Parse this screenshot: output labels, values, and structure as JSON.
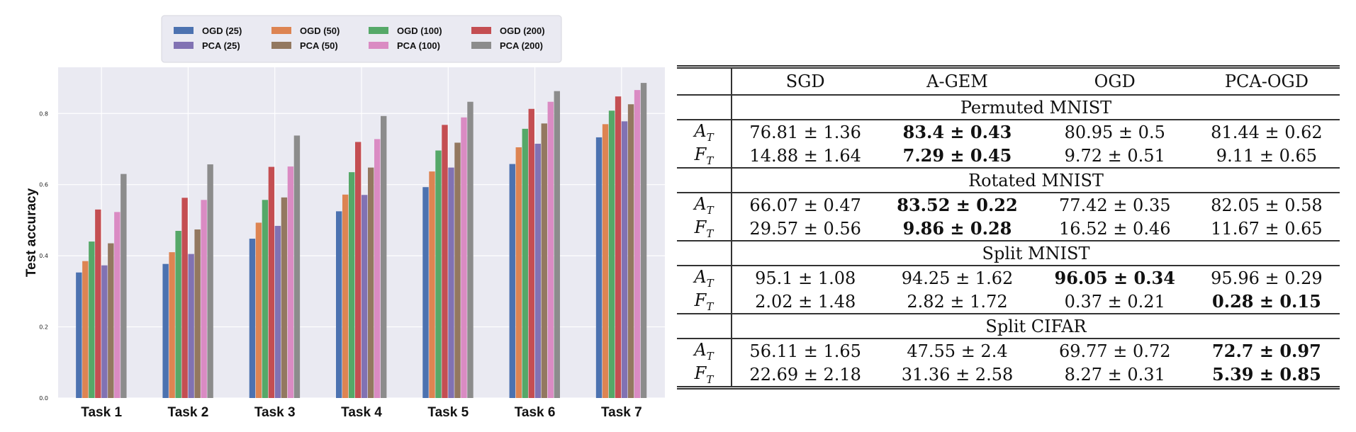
{
  "chart_data": {
    "type": "bar",
    "title": "",
    "xlabel": "",
    "ylabel": "Test accuracy",
    "ylim": [
      0.0,
      0.93
    ],
    "yticks": [
      "0.0",
      "0.2",
      "0.4",
      "0.6",
      "0.8"
    ],
    "ytick_values": [
      0.0,
      0.2,
      0.4,
      0.6,
      0.8
    ],
    "grid": true,
    "legend_position": "top",
    "categories": [
      "Task 1",
      "Task 2",
      "Task 3",
      "Task 4",
      "Task 5",
      "Task 6",
      "Task 7"
    ],
    "series": [
      {
        "name": "OGD (25)",
        "color": "#4c72b0",
        "values": [
          0.353,
          0.377,
          0.448,
          0.525,
          0.593,
          0.658,
          0.733
        ]
      },
      {
        "name": "OGD (50)",
        "color": "#dd8452",
        "values": [
          0.385,
          0.41,
          0.493,
          0.572,
          0.637,
          0.705,
          0.77
        ]
      },
      {
        "name": "OGD (100)",
        "color": "#55a868",
        "values": [
          0.44,
          0.47,
          0.557,
          0.635,
          0.696,
          0.757,
          0.808
        ]
      },
      {
        "name": "OGD (200)",
        "color": "#c44e52",
        "values": [
          0.53,
          0.563,
          0.65,
          0.72,
          0.768,
          0.813,
          0.848
        ]
      },
      {
        "name": "PCA (25)",
        "color": "#8172b3",
        "values": [
          0.373,
          0.405,
          0.484,
          0.571,
          0.648,
          0.715,
          0.778
        ]
      },
      {
        "name": "PCA (50)",
        "color": "#937860",
        "values": [
          0.435,
          0.474,
          0.564,
          0.648,
          0.718,
          0.772,
          0.826
        ]
      },
      {
        "name": "PCA (100)",
        "color": "#da8bc3",
        "values": [
          0.523,
          0.557,
          0.651,
          0.728,
          0.789,
          0.833,
          0.866
        ]
      },
      {
        "name": "PCA (200)",
        "color": "#8c8c8c",
        "values": [
          0.63,
          0.657,
          0.738,
          0.793,
          0.833,
          0.863,
          0.886
        ]
      }
    ]
  },
  "table": {
    "columns": [
      "SGD",
      "A-GEM",
      "OGD",
      "PCA-OGD"
    ],
    "metric_A": "A",
    "metric_F": "F",
    "metric_sub": "T",
    "sections": [
      {
        "name": "Permuted MNIST",
        "rows": [
          {
            "metric": "A",
            "cells": [
              {
                "text": "76.81 ± 1.36",
                "bold": false
              },
              {
                "text": "83.4 ± 0.43",
                "bold": true
              },
              {
                "text": "80.95 ± 0.5",
                "bold": false
              },
              {
                "text": "81.44 ± 0.62",
                "bold": false
              }
            ]
          },
          {
            "metric": "F",
            "cells": [
              {
                "text": "14.88 ± 1.64",
                "bold": false
              },
              {
                "text": "7.29 ± 0.45",
                "bold": true
              },
              {
                "text": "9.72 ± 0.51",
                "bold": false
              },
              {
                "text": "9.11 ± 0.65",
                "bold": false
              }
            ]
          }
        ]
      },
      {
        "name": "Rotated MNIST",
        "rows": [
          {
            "metric": "A",
            "cells": [
              {
                "text": "66.07 ± 0.47",
                "bold": false
              },
              {
                "text": "83.52 ± 0.22",
                "bold": true
              },
              {
                "text": "77.42 ± 0.35",
                "bold": false
              },
              {
                "text": "82.05 ± 0.58",
                "bold": false
              }
            ]
          },
          {
            "metric": "F",
            "cells": [
              {
                "text": "29.57 ± 0.56",
                "bold": false
              },
              {
                "text": "9.86 ± 0.28",
                "bold": true
              },
              {
                "text": "16.52 ± 0.46",
                "bold": false
              },
              {
                "text": "11.67 ± 0.65",
                "bold": false
              }
            ]
          }
        ]
      },
      {
        "name": "Split MNIST",
        "rows": [
          {
            "metric": "A",
            "cells": [
              {
                "text": "95.1 ± 1.08",
                "bold": false
              },
              {
                "text": "94.25 ± 1.62",
                "bold": false
              },
              {
                "text": "96.05 ± 0.34",
                "bold": true
              },
              {
                "text": "95.96 ± 0.29",
                "bold": false
              }
            ]
          },
          {
            "metric": "F",
            "cells": [
              {
                "text": "2.02 ± 1.48",
                "bold": false
              },
              {
                "text": "2.82 ± 1.72",
                "bold": false
              },
              {
                "text": "0.37 ± 0.21",
                "bold": false
              },
              {
                "text": "0.28 ± 0.15",
                "bold": true
              }
            ]
          }
        ]
      },
      {
        "name": "Split CIFAR",
        "rows": [
          {
            "metric": "A",
            "cells": [
              {
                "text": "56.11 ± 1.65",
                "bold": false
              },
              {
                "text": "47.55 ± 2.4",
                "bold": false
              },
              {
                "text": "69.77 ± 0.72",
                "bold": false
              },
              {
                "text": "72.7 ± 0.97",
                "bold": true
              }
            ]
          },
          {
            "metric": "F",
            "cells": [
              {
                "text": "22.69 ± 2.18",
                "bold": false
              },
              {
                "text": "31.36 ± 2.58",
                "bold": false
              },
              {
                "text": "8.27 ± 0.31",
                "bold": false
              },
              {
                "text": "5.39 ± 0.85",
                "bold": true
              }
            ]
          }
        ]
      }
    ]
  }
}
